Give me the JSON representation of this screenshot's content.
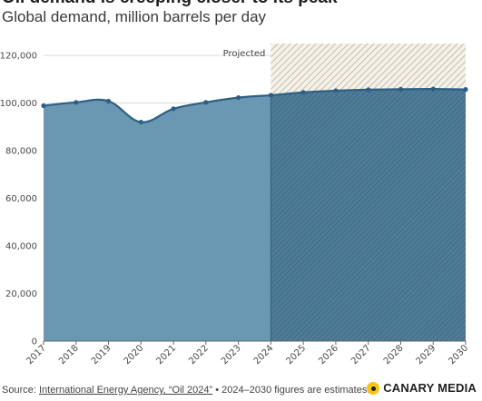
{
  "title": "Oil demand is creeping closer to its peak",
  "subtitle": "Global demand, million barrels per day",
  "projected_label": "Projected",
  "footer": {
    "source_prefix": "Source:",
    "source_link": "International Energy Agency, “Oil 2024”",
    "note": " • 2024–2030 figures are estimates."
  },
  "brand": "CANARY MEDIA",
  "colors": {
    "area_fill": "#6a97b1",
    "line": "#2d5f84",
    "projected_hatch": "#b9b2a0",
    "projected_bg": "#f4f1e8"
  },
  "chart_data": {
    "type": "area",
    "x": [
      "2017",
      "2018",
      "2019",
      "2020",
      "2021",
      "2022",
      "2023",
      "2024",
      "2025",
      "2026",
      "2027",
      "2028",
      "2029",
      "2030"
    ],
    "series": [
      {
        "values": [
          98900,
          100300,
          100800,
          92000,
          97600,
          100300,
          102300,
          103300,
          104500,
          105200,
          105600,
          105800,
          105900,
          105700
        ]
      }
    ],
    "ylim": [
      0,
      125000
    ],
    "yticks": [
      "0",
      "20,000",
      "40,000",
      "60,000",
      "80,000",
      "100,000",
      "120,000"
    ],
    "projected_range": [
      "2024",
      "2030"
    ],
    "grid": true
  }
}
